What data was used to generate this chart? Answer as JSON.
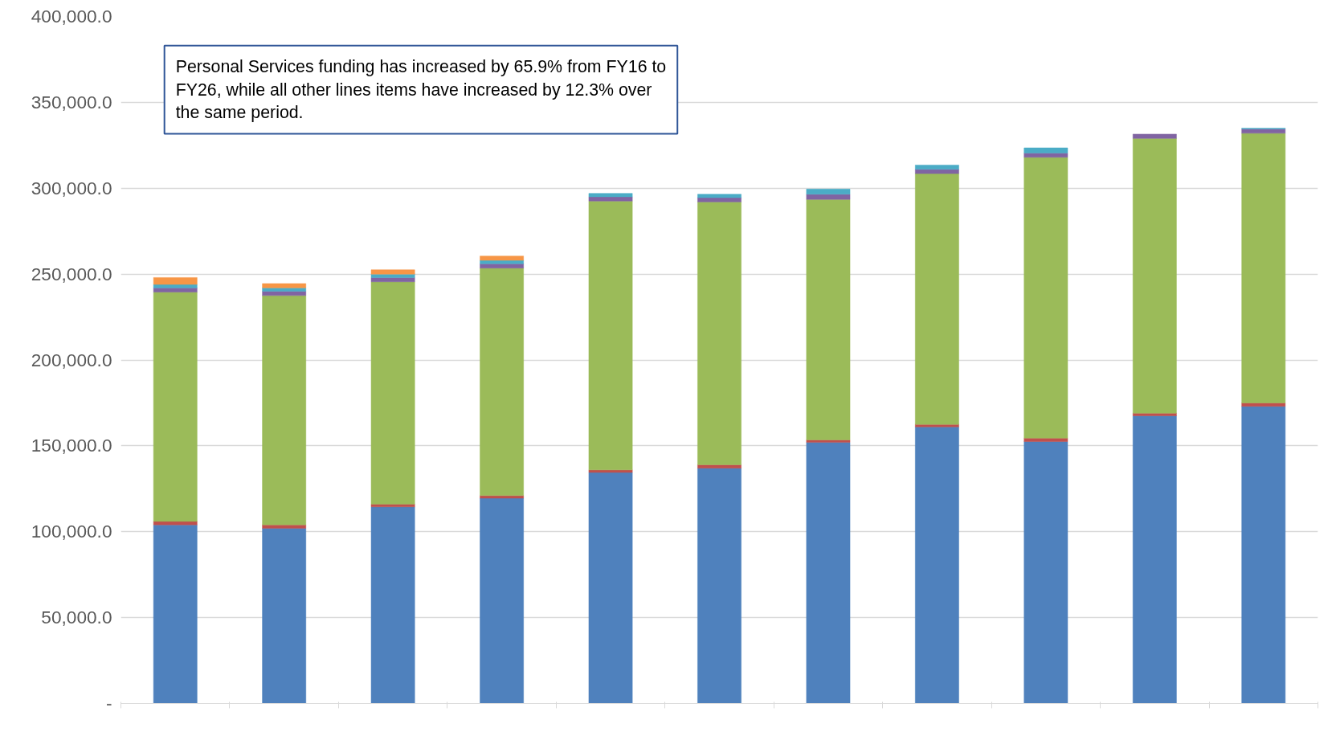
{
  "chart_data": {
    "type": "bar",
    "stacked": true,
    "categories": [
      null,
      null,
      null,
      null,
      null,
      null,
      null,
      null,
      null,
      null,
      null
    ],
    "series": [
      {
        "color": "#4f81bd",
        "values": [
          104000,
          102000,
          114500,
          119500,
          134500,
          137000,
          152000,
          161000,
          152500,
          167500,
          173000
        ]
      },
      {
        "color": "#c0504d",
        "values": [
          2000,
          2000,
          1500,
          1500,
          1500,
          2000,
          1500,
          1500,
          2000,
          1500,
          2000
        ]
      },
      {
        "color": "#9bbb59",
        "values": [
          133500,
          133500,
          129500,
          132500,
          156500,
          153000,
          140000,
          146000,
          163500,
          160000,
          157000
        ]
      },
      {
        "color": "#8064a2",
        "values": [
          2500,
          2500,
          2500,
          2500,
          2500,
          2500,
          3000,
          2500,
          2500,
          2500,
          2500
        ]
      },
      {
        "color": "#4bacc6",
        "values": [
          2000,
          2000,
          2000,
          2000,
          2000,
          2000,
          3000,
          2500,
          3000,
          null,
          500
        ]
      },
      {
        "color": "#f79646",
        "values": [
          4000,
          2500,
          2500,
          2500,
          null,
          null,
          null,
          null,
          null,
          null,
          null
        ]
      }
    ],
    "ylim": [
      0,
      400000
    ],
    "yticks": [
      {
        "value": 0,
        "label": "-"
      },
      {
        "value": 50000,
        "label": "50,000.0"
      },
      {
        "value": 100000,
        "label": "100,000.0"
      },
      {
        "value": 150000,
        "label": "150,000.0"
      },
      {
        "value": 200000,
        "label": "200,000.0"
      },
      {
        "value": 250000,
        "label": "250,000.0"
      },
      {
        "value": 300000,
        "label": "300,000.0"
      },
      {
        "value": 350000,
        "label": "350,000.0"
      },
      {
        "value": 400000,
        "label": "400,000.0"
      }
    ],
    "grid": "y",
    "tick_labels": "y",
    "annotations": [
      "Personal Services funding has increased by 65.9% from FY16 to FY26, while all other lines items have increased by 12.3% over the same period."
    ]
  }
}
